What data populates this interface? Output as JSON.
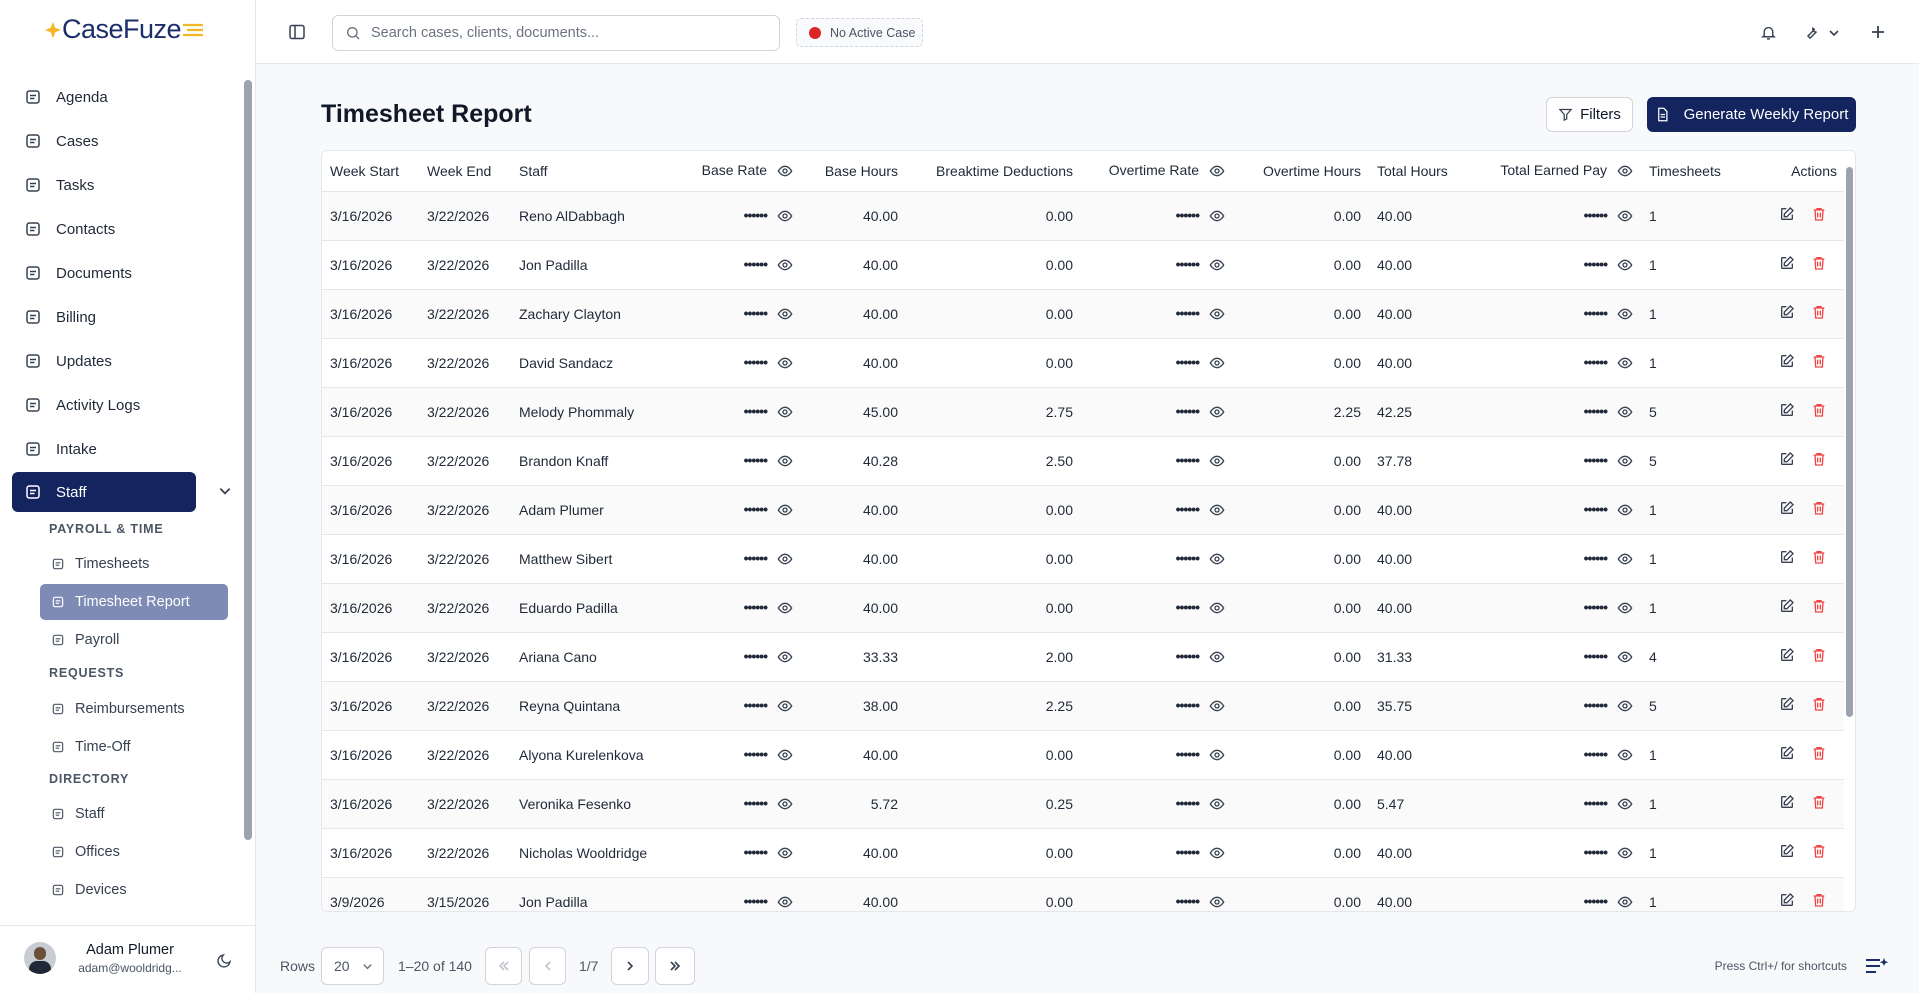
{
  "header": {
    "logo": "CaseFuze",
    "search_placeholder": "Search cases, clients, documents...",
    "case_status": "No Active Case"
  },
  "sidebar": {
    "nav": [
      "Agenda",
      "Cases",
      "Tasks",
      "Contacts",
      "Documents",
      "Billing",
      "Updates",
      "Activity Logs",
      "Intake",
      "Staff"
    ],
    "sections": [
      {
        "title": "PAYROLL & TIME",
        "items": [
          "Timesheets",
          "Timesheet Report",
          "Payroll"
        ]
      },
      {
        "title": "REQUESTS",
        "items": [
          "Reimbursements",
          "Time-Off"
        ]
      },
      {
        "title": "DIRECTORY",
        "items": [
          "Staff",
          "Offices",
          "Devices"
        ]
      }
    ],
    "user": {
      "name": "Adam Plumer",
      "email": "adam@wooldridg..."
    }
  },
  "page": {
    "title": "Timesheet Report",
    "filters": "Filters",
    "generate": "Generate Weekly Report"
  },
  "table": {
    "columns": [
      "Week Start",
      "Week End",
      "Staff",
      "Base Rate",
      "Base Hours",
      "Breaktime Deductions",
      "Overtime Rate",
      "Overtime Hours",
      "Total Hours",
      "Total Earned Pay",
      "Timesheets",
      "Actions"
    ],
    "rows": [
      [
        "3/16/2026",
        "3/22/2026",
        "Reno AlDabbagh",
        "••••••",
        "40.00",
        "0.00",
        "••••••",
        "0.00",
        "40.00",
        "••••••",
        "1"
      ],
      [
        "3/16/2026",
        "3/22/2026",
        "Jon Padilla",
        "••••••",
        "40.00",
        "0.00",
        "••••••",
        "0.00",
        "40.00",
        "••••••",
        "1"
      ],
      [
        "3/16/2026",
        "3/22/2026",
        "Zachary Clayton",
        "••••••",
        "40.00",
        "0.00",
        "••••••",
        "0.00",
        "40.00",
        "••••••",
        "1"
      ],
      [
        "3/16/2026",
        "3/22/2026",
        "David Sandacz",
        "••••••",
        "40.00",
        "0.00",
        "••••••",
        "0.00",
        "40.00",
        "••••••",
        "1"
      ],
      [
        "3/16/2026",
        "3/22/2026",
        "Melody Phommaly",
        "••••••",
        "45.00",
        "2.75",
        "••••••",
        "2.25",
        "42.25",
        "••••••",
        "5"
      ],
      [
        "3/16/2026",
        "3/22/2026",
        "Brandon Knaff",
        "••••••",
        "40.28",
        "2.50",
        "••••••",
        "0.00",
        "37.78",
        "••••••",
        "5"
      ],
      [
        "3/16/2026",
        "3/22/2026",
        "Adam Plumer",
        "••••••",
        "40.00",
        "0.00",
        "••••••",
        "0.00",
        "40.00",
        "••••••",
        "1"
      ],
      [
        "3/16/2026",
        "3/22/2026",
        "Matthew Sibert",
        "••••••",
        "40.00",
        "0.00",
        "••••••",
        "0.00",
        "40.00",
        "••••••",
        "1"
      ],
      [
        "3/16/2026",
        "3/22/2026",
        "Eduardo Padilla",
        "••••••",
        "40.00",
        "0.00",
        "••••••",
        "0.00",
        "40.00",
        "••••••",
        "1"
      ],
      [
        "3/16/2026",
        "3/22/2026",
        "Ariana Cano",
        "••••••",
        "33.33",
        "2.00",
        "••••••",
        "0.00",
        "31.33",
        "••••••",
        "4"
      ],
      [
        "3/16/2026",
        "3/22/2026",
        "Reyna Quintana",
        "••••••",
        "38.00",
        "2.25",
        "••••••",
        "0.00",
        "35.75",
        "••••••",
        "5"
      ],
      [
        "3/16/2026",
        "3/22/2026",
        "Alyona Kurelenkova",
        "••••••",
        "40.00",
        "0.00",
        "••••••",
        "0.00",
        "40.00",
        "••••••",
        "1"
      ],
      [
        "3/16/2026",
        "3/22/2026",
        "Veronika Fesenko",
        "••••••",
        "5.72",
        "0.25",
        "••••••",
        "0.00",
        "5.47",
        "••••••",
        "1"
      ],
      [
        "3/16/2026",
        "3/22/2026",
        "Nicholas Wooldridge",
        "••••••",
        "40.00",
        "0.00",
        "••••••",
        "0.00",
        "40.00",
        "••••••",
        "1"
      ],
      [
        "3/9/2026",
        "3/15/2026",
        "Jon Padilla",
        "••••••",
        "40.00",
        "0.00",
        "••••••",
        "0.00",
        "40.00",
        "••••••",
        "1"
      ]
    ]
  },
  "pagination": {
    "rows_label": "Rows",
    "page_size": "20",
    "range": "1–20 of 140",
    "page": "1/7",
    "shortcut_hint": "Press Ctrl+/ for shortcuts"
  }
}
